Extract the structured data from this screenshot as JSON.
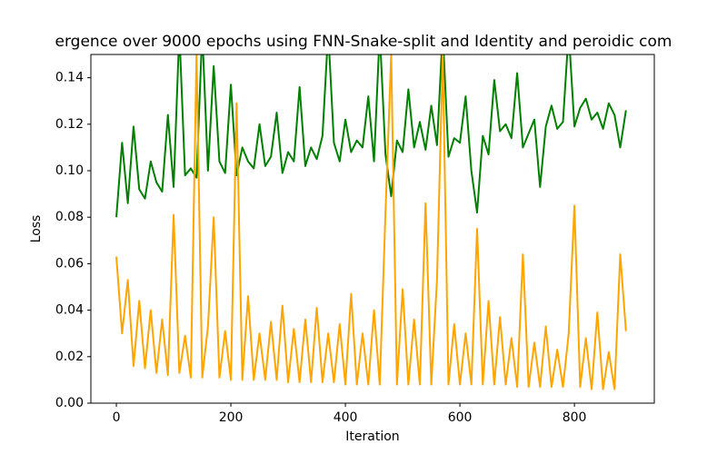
{
  "chart_data": {
    "type": "line",
    "title": "ergence over 9000 epochs using FNN-Snake-split and Identity and peroidic com",
    "x_label": "Iteration",
    "y_label": "Loss",
    "x": [
      0,
      10,
      20,
      30,
      40,
      50,
      60,
      70,
      80,
      90,
      100,
      110,
      120,
      130,
      140,
      150,
      160,
      170,
      180,
      190,
      200,
      210,
      220,
      230,
      240,
      250,
      260,
      270,
      280,
      290,
      300,
      310,
      320,
      330,
      340,
      350,
      360,
      370,
      380,
      390,
      400,
      410,
      420,
      430,
      440,
      450,
      460,
      470,
      480,
      490,
      500,
      510,
      520,
      530,
      540,
      550,
      560,
      570,
      580,
      590,
      600,
      610,
      620,
      630,
      640,
      650,
      660,
      670,
      680,
      690,
      700,
      710,
      720,
      730,
      740,
      750,
      760,
      770,
      780,
      790,
      800,
      810,
      820,
      830,
      840,
      850,
      860,
      870,
      880,
      890
    ],
    "series": [
      {
        "color": "#008000",
        "values": [
          0.08,
          0.112,
          0.086,
          0.119,
          0.092,
          0.088,
          0.104,
          0.095,
          0.091,
          0.124,
          0.093,
          0.16,
          0.098,
          0.101,
          0.097,
          0.16,
          0.1,
          0.145,
          0.104,
          0.099,
          0.137,
          0.098,
          0.11,
          0.104,
          0.101,
          0.12,
          0.102,
          0.106,
          0.125,
          0.099,
          0.108,
          0.104,
          0.136,
          0.102,
          0.11,
          0.105,
          0.115,
          0.16,
          0.112,
          0.104,
          0.122,
          0.108,
          0.113,
          0.11,
          0.132,
          0.104,
          0.16,
          0.107,
          0.089,
          0.113,
          0.108,
          0.135,
          0.11,
          0.121,
          0.109,
          0.128,
          0.111,
          0.16,
          0.106,
          0.114,
          0.112,
          0.132,
          0.1,
          0.082,
          0.115,
          0.107,
          0.139,
          0.117,
          0.12,
          0.114,
          0.142,
          0.11,
          0.116,
          0.122,
          0.093,
          0.119,
          0.128,
          0.118,
          0.121,
          0.16,
          0.119,
          0.127,
          0.131,
          0.122,
          0.125,
          0.118,
          0.129,
          0.124,
          0.11,
          0.126
        ]
      },
      {
        "color": "#ffa500",
        "values": [
          0.063,
          0.03,
          0.053,
          0.016,
          0.044,
          0.015,
          0.04,
          0.013,
          0.036,
          0.012,
          0.081,
          0.013,
          0.029,
          0.011,
          0.15,
          0.011,
          0.033,
          0.08,
          0.011,
          0.031,
          0.01,
          0.129,
          0.01,
          0.046,
          0.01,
          0.03,
          0.01,
          0.035,
          0.01,
          0.042,
          0.009,
          0.032,
          0.009,
          0.036,
          0.009,
          0.041,
          0.009,
          0.03,
          0.009,
          0.034,
          0.008,
          0.047,
          0.008,
          0.03,
          0.008,
          0.04,
          0.008,
          0.082,
          0.15,
          0.008,
          0.049,
          0.008,
          0.036,
          0.008,
          0.086,
          0.008,
          0.053,
          0.15,
          0.008,
          0.034,
          0.008,
          0.03,
          0.008,
          0.075,
          0.008,
          0.044,
          0.008,
          0.037,
          0.008,
          0.028,
          0.007,
          0.064,
          0.007,
          0.026,
          0.007,
          0.033,
          0.007,
          0.023,
          0.007,
          0.03,
          0.085,
          0.007,
          0.028,
          0.006,
          0.039,
          0.006,
          0.022,
          0.006,
          0.064,
          0.031
        ]
      }
    ],
    "xlim": [
      -44.5,
      939.5
    ],
    "ylim": [
      0,
      0.15
    ],
    "xticks": [
      0,
      200,
      400,
      600,
      800
    ],
    "yticks": [
      {
        "value": 0,
        "label": "0.00"
      },
      0.02,
      0.04,
      0.06,
      0.08,
      {
        "value": 0.1,
        "label": "0.10"
      },
      0.12,
      0.14
    ]
  }
}
